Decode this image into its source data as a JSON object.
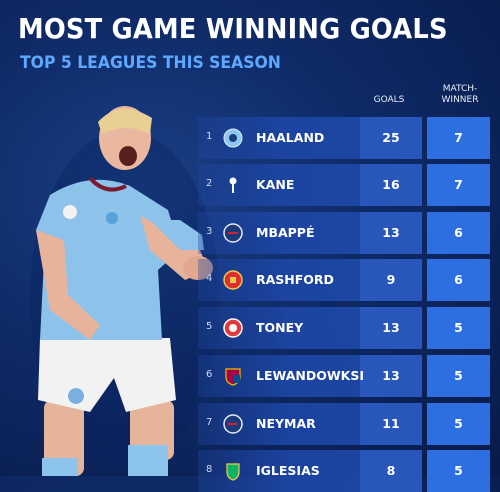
{
  "header": {
    "title": "MOST GAME WINNING GOALS",
    "subtitle": "TOP 5 LEAGUES THIS SEASON"
  },
  "table": {
    "col_goals": "GOALS",
    "col_mw_line1": "MATCH-",
    "col_mw_line2": "WINNER",
    "rows": [
      {
        "rank": "1",
        "name": "HAALAND",
        "goals": "25",
        "mw": "7",
        "crest": "man-city-crest-icon"
      },
      {
        "rank": "2",
        "name": "KANE",
        "goals": "16",
        "mw": "7",
        "crest": "tottenham-crest-icon"
      },
      {
        "rank": "3",
        "name": "MBAPPÉ",
        "goals": "13",
        "mw": "6",
        "crest": "psg-crest-icon"
      },
      {
        "rank": "4",
        "name": "RASHFORD",
        "goals": "9",
        "mw": "6",
        "crest": "man-united-crest-icon"
      },
      {
        "rank": "5",
        "name": "TONEY",
        "goals": "13",
        "mw": "5",
        "crest": "brentford-crest-icon"
      },
      {
        "rank": "6",
        "name": "LEWANDOWKSI",
        "goals": "13",
        "mw": "5",
        "crest": "barcelona-crest-icon"
      },
      {
        "rank": "7",
        "name": "NEYMAR",
        "goals": "11",
        "mw": "5",
        "crest": "psg-crest-icon"
      },
      {
        "rank": "8",
        "name": "IGLESIAS",
        "goals": "8",
        "mw": "5",
        "crest": "betis-crest-icon"
      }
    ]
  },
  "colors": {
    "accent": "#5fa8ff",
    "row": "#1f48aa",
    "mw_cell": "#2d6ee0"
  }
}
